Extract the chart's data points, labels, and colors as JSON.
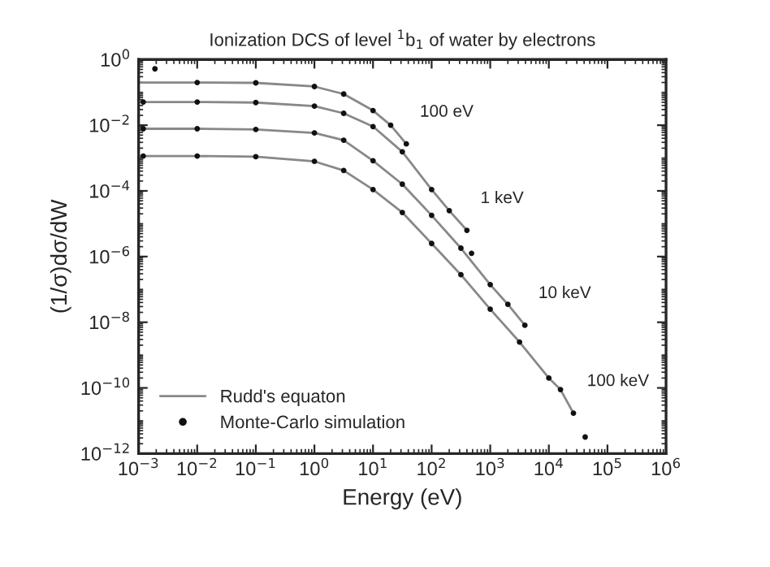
{
  "chart_data": {
    "type": "line",
    "title": "Ionization DCS of level $^{1}$b$_{1}$ of water by electrons",
    "xlabel": "Energy (eV)",
    "ylabel": "(1/σ)dσ/dW",
    "log": "xy",
    "grid": false,
    "legend": "bottom left",
    "xlim": [
      0.001,
      1000000
    ],
    "ylim": [
      1e-12,
      1
    ],
    "xticks": [
      {
        "value": 0.001,
        "label": "10$^{−3}$"
      },
      {
        "value": 0.01,
        "label": "10$^{−2}$"
      },
      {
        "value": 0.1,
        "label": "10$^{−1}$"
      },
      {
        "value": 1,
        "label": "10$^{0}$"
      },
      {
        "value": 10,
        "label": "10$^{1}$"
      },
      {
        "value": 100,
        "label": "10$^{2}$"
      },
      {
        "value": 1000,
        "label": "10$^{3}$"
      },
      {
        "value": 10000,
        "label": "10$^{4}$"
      },
      {
        "value": 100000,
        "label": "10$^{5}$"
      },
      {
        "value": 1000000,
        "label": "10$^{6}$"
      }
    ],
    "yticks": [
      {
        "value": 1e-12,
        "label": "10$^{−12}$"
      },
      {
        "value": 1e-10,
        "label": "10$^{−10}$"
      },
      {
        "value": 1e-08,
        "label": "10$^{−8}$"
      },
      {
        "value": 1e-06,
        "label": "10$^{−6}$"
      },
      {
        "value": 0.0001,
        "label": "10$^{−4}$"
      },
      {
        "value": 0.01,
        "label": "10$^{−2}$"
      },
      {
        "value": 1,
        "label": "10$^{0}$"
      }
    ],
    "series": [
      {
        "name": "Rudd's equaton",
        "color": "#888888",
        "line_style": "solid",
        "marker": "none",
        "x": [
          0.001,
          0.01,
          0.1,
          1,
          3.16,
          10,
          20,
          37
        ],
        "values": [
          0.2,
          0.2,
          0.195,
          0.151,
          0.089,
          0.028,
          0.01,
          0.0027
        ]
      },
      {
        "color": "#888888",
        "line_style": "solid",
        "marker": "none",
        "x": [
          0.001,
          0.01,
          0.1,
          1,
          3.16,
          10,
          31.6,
          100,
          200,
          400
        ],
        "values": [
          0.051,
          0.051,
          0.049,
          0.038,
          0.023,
          0.0091,
          0.00155,
          0.00011,
          2.5e-05,
          6.3e-06
        ]
      },
      {
        "color": "#888888",
        "line_style": "solid",
        "marker": "none",
        "x": [
          0.001,
          0.01,
          0.1,
          1,
          3.16,
          10,
          31.6,
          100,
          316,
          1000,
          2000,
          3900
        ],
        "values": [
          0.0078,
          0.0078,
          0.0074,
          0.0058,
          0.0035,
          0.00083,
          0.00016,
          1.8e-05,
          1.8e-06,
          1.4e-07,
          3.5e-08,
          8.1e-09
        ]
      },
      {
        "color": "#888888",
        "line_style": "solid",
        "marker": "none",
        "x": [
          0.001,
          0.01,
          0.1,
          1,
          3.16,
          10,
          31.6,
          100,
          316,
          1000,
          3162,
          10000,
          15800,
          26300
        ],
        "values": [
          0.00115,
          0.00115,
          0.0011,
          0.00079,
          0.00042,
          0.00011,
          2.2e-05,
          2.5e-06,
          2.8e-07,
          2.5e-08,
          2.5e-09,
          2e-10,
          8.9e-11,
          1.7e-11
        ]
      },
      {
        "type": "scatter",
        "name": "Monte-Carlo simulation",
        "color": "#111111",
        "marker": "circle",
        "x": [
          0.0019,
          0.01,
          0.1,
          1,
          3.16,
          10,
          20,
          37
        ],
        "values": [
          0.52,
          0.2,
          0.195,
          0.151,
          0.089,
          0.028,
          0.01,
          0.0027
        ]
      },
      {
        "type": "scatter",
        "color": "#111111",
        "marker": "circle",
        "x": [
          0.0012,
          0.01,
          0.1,
          1,
          3.16,
          10,
          31.6,
          100,
          200,
          400,
          480
        ],
        "values": [
          0.051,
          0.051,
          0.049,
          0.038,
          0.023,
          0.0091,
          0.00155,
          0.00011,
          2.5e-05,
          6.3e-06,
          1.26e-06
        ]
      },
      {
        "type": "scatter",
        "color": "#111111",
        "marker": "circle",
        "x": [
          0.0012,
          0.01,
          0.1,
          1,
          3.16,
          10,
          31.6,
          100,
          316,
          1000,
          2000,
          3900
        ],
        "values": [
          0.0078,
          0.0078,
          0.0074,
          0.0058,
          0.0035,
          0.00083,
          0.00016,
          1.8e-05,
          1.8e-06,
          1.4e-07,
          3.5e-08,
          8.1e-09
        ]
      },
      {
        "type": "scatter",
        "color": "#111111",
        "marker": "circle",
        "x": [
          0.0012,
          0.01,
          0.1,
          1,
          3.16,
          10,
          31.6,
          100,
          316,
          1000,
          3162,
          10000,
          15800,
          26300,
          41700
        ],
        "values": [
          0.00115,
          0.00115,
          0.0011,
          0.00079,
          0.00042,
          0.00011,
          2.2e-05,
          2.5e-06,
          2.8e-07,
          2.5e-08,
          2.5e-09,
          2e-10,
          8.9e-11,
          1.7e-11,
          3.2e-12
        ]
      }
    ],
    "annotations": [
      "100 eV",
      "1 keV",
      "10 keV",
      "100 keV"
    ]
  }
}
